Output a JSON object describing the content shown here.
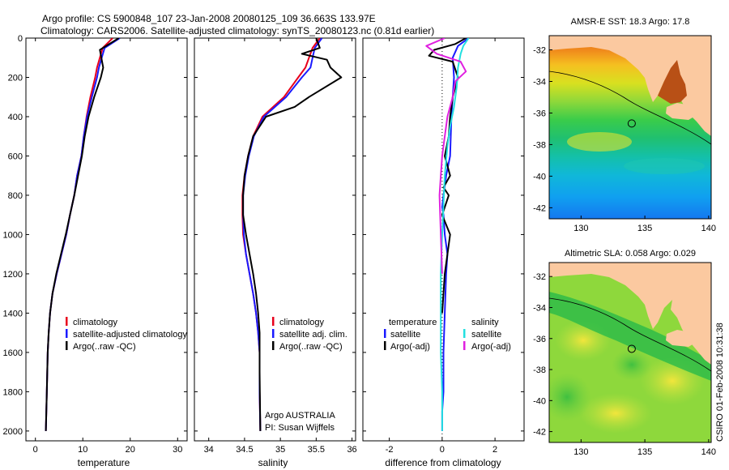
{
  "header": {
    "line1": "Argo profile: CS 5900848_107 23-Jan-2008 20080125_109 36.663S 133.97E",
    "line2": "Climatology: CARS2006. Satellite-adjusted climatology: synTS_20080123.nc (0.81d earlier)"
  },
  "footer_stamp": "CSIRO 01-Feb-2008 10:31:38",
  "colors": {
    "climatology": "#e8001c",
    "satellite": "#1a1aff",
    "argo": "#000000",
    "cyan": "#22e0e0",
    "magenta": "#e020e0",
    "land": "#fbc9a0"
  },
  "chart_data": [
    {
      "type": "line",
      "id": "temperature",
      "xlabel": "temperature",
      "ylabel": "",
      "xlim": [
        -2,
        32
      ],
      "ylim": [
        2050,
        0
      ],
      "xticks": [
        0,
        10,
        20,
        30
      ],
      "yticks": [
        0,
        200,
        400,
        600,
        800,
        1000,
        1200,
        1400,
        1600,
        1800,
        2000
      ],
      "legend": [
        "climatology",
        "satellite-adjusted climatology",
        "Argo(..raw -QC)"
      ],
      "series": [
        {
          "name": "climatology",
          "color": "#e8001c",
          "x": [
            16.3,
            14.2,
            13.6,
            13.0,
            12.6,
            11.6,
            10.8,
            10.2,
            9.7,
            8.8,
            8.2,
            7.3,
            6.5,
            5.5,
            4.5,
            3.6,
            3.1,
            2.8,
            2.6,
            2.4,
            2.3,
            2.2
          ],
          "y": [
            0,
            50,
            100,
            150,
            200,
            300,
            400,
            500,
            600,
            700,
            800,
            900,
            1000,
            1100,
            1200,
            1300,
            1400,
            1500,
            1600,
            1800,
            1900,
            2000
          ]
        },
        {
          "name": "satellite-adjusted climatology",
          "color": "#1a1aff",
          "x": [
            17.8,
            14.6,
            14.0,
            13.4,
            13.0,
            11.9,
            10.9,
            10.2,
            9.7,
            8.8,
            8.2,
            7.3,
            6.5,
            5.5,
            4.5,
            3.6,
            3.1,
            2.8,
            2.6,
            2.4,
            2.3,
            2.2
          ],
          "y": [
            0,
            50,
            100,
            150,
            200,
            300,
            400,
            500,
            600,
            700,
            800,
            900,
            1000,
            1100,
            1200,
            1300,
            1400,
            1500,
            1600,
            1800,
            1900,
            2000
          ]
        },
        {
          "name": "Argo(..raw -QC)",
          "color": "#000000",
          "x": [
            17.6,
            13.6,
            13.9,
            14.3,
            13.8,
            12.4,
            11.2,
            10.4,
            9.8,
            9.0,
            8.2,
            7.3,
            6.4,
            5.4,
            4.4,
            3.6,
            3.1,
            2.8,
            2.6,
            2.4,
            2.3,
            2.2
          ],
          "y": [
            0,
            60,
            100,
            150,
            200,
            300,
            400,
            500,
            600,
            700,
            800,
            900,
            1000,
            1100,
            1200,
            1300,
            1400,
            1500,
            1600,
            1800,
            1900,
            2000
          ]
        }
      ]
    },
    {
      "type": "line",
      "id": "salinity",
      "xlabel": "salinity",
      "ylabel": "",
      "xlim": [
        33.8,
        36.05
      ],
      "ylim": [
        2050,
        0
      ],
      "xticks": [
        34,
        34.5,
        35,
        35.5,
        36
      ],
      "xticklabels": [
        "34",
        "34.5",
        "35",
        "35.5",
        "36"
      ],
      "legend": [
        "climatology",
        "satellite adj. clim.",
        "Argo(..raw -QC)"
      ],
      "annotation": [
        "Argo AUSTRALIA",
        "PI: Susan Wijffels"
      ],
      "series": [
        {
          "name": "climatology",
          "color": "#e8001c",
          "x": [
            35.55,
            35.45,
            35.4,
            35.35,
            35.25,
            35.05,
            34.75,
            34.62,
            34.55,
            34.5,
            34.47,
            34.47,
            34.48,
            34.52,
            34.57,
            34.62,
            34.66,
            34.69,
            34.71,
            34.71,
            34.72
          ],
          "y": [
            0,
            50,
            100,
            150,
            200,
            300,
            400,
            500,
            600,
            700,
            800,
            900,
            1000,
            1100,
            1200,
            1300,
            1400,
            1500,
            1600,
            1800,
            2000
          ]
        },
        {
          "name": "satellite adj. clim.",
          "color": "#1a1aff",
          "x": [
            35.58,
            35.48,
            35.45,
            35.42,
            35.3,
            35.08,
            34.77,
            34.63,
            34.56,
            34.51,
            34.48,
            34.48,
            34.49,
            34.52,
            34.57,
            34.62,
            34.66,
            34.69,
            34.71,
            34.71,
            34.72
          ],
          "y": [
            0,
            50,
            100,
            150,
            200,
            300,
            400,
            500,
            600,
            700,
            800,
            900,
            1000,
            1100,
            1200,
            1300,
            1400,
            1500,
            1600,
            1800,
            2000
          ]
        },
        {
          "name": "Argo(..raw -QC)",
          "color": "#000000",
          "x": [
            35.5,
            35.55,
            35.3,
            35.65,
            35.7,
            35.85,
            35.4,
            35.2,
            34.8,
            34.62,
            34.55,
            34.5,
            34.48,
            34.48,
            34.52,
            34.57,
            34.62,
            34.66,
            34.69,
            34.71,
            34.71,
            34.72
          ],
          "y": [
            0,
            50,
            80,
            110,
            150,
            200,
            300,
            350,
            400,
            500,
            600,
            700,
            800,
            900,
            1000,
            1100,
            1200,
            1300,
            1400,
            1500,
            1700,
            2000
          ]
        }
      ]
    },
    {
      "type": "line",
      "id": "difference",
      "xlabel": "difference from climatology",
      "ylabel": "",
      "xlim": [
        -3,
        3.1
      ],
      "ylim": [
        2050,
        0
      ],
      "xticks": [
        -2,
        0,
        2
      ],
      "xticklabels": [
        "-2",
        "0",
        "2"
      ],
      "legend_temperature": [
        "temperature",
        "satellite",
        "Argo(-adj)"
      ],
      "legend_salinity": [
        "salinity",
        "satellite",
        "Argo(-adj)"
      ],
      "series": [
        {
          "name": "temperature satellite",
          "color": "#1a1aff",
          "x": [
            1.0,
            0.6,
            0.4,
            0.45,
            0.35,
            0.3,
            0.15,
            0.05,
            0.0,
            0.05,
            0.1,
            0.2,
            0.15,
            0.1,
            0.05,
            0.05,
            0.0,
            0.0
          ],
          "y": [
            0,
            40,
            100,
            200,
            400,
            600,
            700,
            800,
            860,
            900,
            1000,
            1100,
            1200,
            1400,
            1600,
            1800,
            1900,
            2000
          ]
        },
        {
          "name": "temperature Argo(-adj)",
          "color": "#000000",
          "x": [
            0.9,
            0.5,
            -0.3,
            -0.5,
            0.4,
            0.6,
            0.4,
            0.3,
            0.25,
            0.1,
            0.3,
            0.05,
            0.25,
            0.0,
            0.3,
            0.2,
            0.1,
            0.0
          ],
          "y": [
            0,
            30,
            60,
            90,
            120,
            200,
            300,
            400,
            500,
            600,
            700,
            760,
            800,
            900,
            1000,
            1100,
            1200,
            1400
          ]
        },
        {
          "name": "salinity satellite",
          "color": "#22e0e0",
          "x": [
            1.0,
            0.8,
            0.7,
            0.6,
            0.55,
            0.45,
            0.3,
            0.2,
            0.1,
            0.05,
            0.0,
            -0.05,
            -0.05,
            -0.05,
            0.0,
            0.0
          ],
          "y": [
            0,
            40,
            80,
            150,
            250,
            350,
            450,
            550,
            700,
            850,
            1000,
            1200,
            1400,
            1600,
            1800,
            2000
          ]
        },
        {
          "name": "salinity Argo(-adj)",
          "color": "#e020e0",
          "x": [
            0.1,
            -0.6,
            -0.2,
            0.7,
            0.9,
            0.5,
            0.4,
            0.2,
            0.1,
            0.0,
            -0.05,
            -0.1,
            -0.05,
            0.0
          ],
          "y": [
            0,
            40,
            80,
            120,
            170,
            220,
            300,
            400,
            500,
            600,
            700,
            800,
            1000,
            1200
          ]
        }
      ]
    },
    {
      "type": "heatmap",
      "id": "sst-map",
      "title": "AMSR-E SST: 18.3 Argo: 17.8",
      "xlim": [
        127.5,
        140.2
      ],
      "ylim": [
        -42.7,
        -31.1
      ],
      "xticks": [
        130,
        135,
        140
      ],
      "yticks": [
        -32,
        -34,
        -36,
        -38,
        -40,
        -42
      ],
      "float_position": {
        "lon": 133.97,
        "lat": -36.663
      }
    },
    {
      "type": "heatmap",
      "id": "sla-map",
      "title": "Altimetric SLA: 0.058 Argo: 0.029",
      "xlim": [
        127.5,
        140.2
      ],
      "ylim": [
        -42.7,
        -31.1
      ],
      "xticks": [
        130,
        135,
        140
      ],
      "yticks": [
        -32,
        -34,
        -36,
        -38,
        -40,
        -42
      ],
      "float_position": {
        "lon": 133.97,
        "lat": -36.663
      }
    }
  ]
}
